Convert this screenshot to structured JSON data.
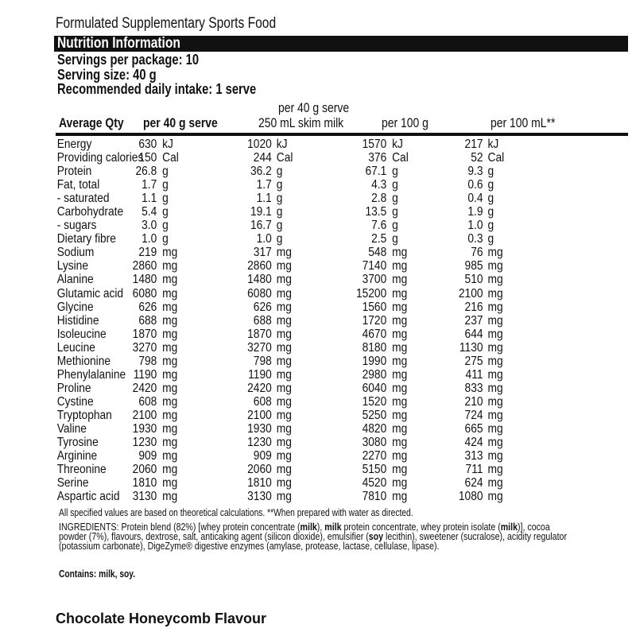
{
  "title": "Formulated Supplementary Sports Food",
  "section": "Nutrition Information",
  "servings": "Servings per package: 10",
  "serving_size": "Serving size: 40 g",
  "daily_intake": "Recommended daily intake: 1 serve",
  "headers": {
    "avg": "Average Qty",
    "col1": "per 40 g serve",
    "col2_line1": "per 40 g serve",
    "col2_line2": "250 mL skim milk",
    "col3": "per 100 g",
    "col4": "per 100 mL**"
  },
  "rows": [
    {
      "name": "Energy",
      "v": [
        "630",
        "1020",
        "1570",
        "217"
      ],
      "unit": "kJ"
    },
    {
      "name": "Providing calories",
      "v": [
        "150",
        "244",
        "376",
        "52"
      ],
      "unit": "Cal"
    },
    {
      "name": "Protein",
      "v": [
        "26.8",
        "36.2",
        "67.1",
        "9.3"
      ],
      "unit": "g"
    },
    {
      "name": "Fat, total",
      "v": [
        "1.7",
        "1.7",
        "4.3",
        "0.6"
      ],
      "unit": "g"
    },
    {
      "name": "- saturated",
      "v": [
        "1.1",
        "1.1",
        "2.8",
        "0.4"
      ],
      "unit": "g"
    },
    {
      "name": "Carbohydrate",
      "v": [
        "5.4",
        "19.1",
        "13.5",
        "1.9"
      ],
      "unit": "g"
    },
    {
      "name": "- sugars",
      "v": [
        "3.0",
        "16.7",
        "7.6",
        "1.0"
      ],
      "unit": "g"
    },
    {
      "name": "Dietary fibre",
      "v": [
        "1.0",
        "1.0",
        "2.5",
        "0.3"
      ],
      "unit": "g"
    },
    {
      "name": "Sodium",
      "v": [
        "219",
        "317",
        "548",
        "76"
      ],
      "unit": "mg"
    },
    {
      "name": "Lysine",
      "v": [
        "2860",
        "2860",
        "7140",
        "985"
      ],
      "unit": "mg"
    },
    {
      "name": "Alanine",
      "v": [
        "1480",
        "1480",
        "3700",
        "510"
      ],
      "unit": "mg"
    },
    {
      "name": "Glutamic acid",
      "v": [
        "6080",
        "6080",
        "15200",
        "2100"
      ],
      "unit": "mg"
    },
    {
      "name": "Glycine",
      "v": [
        "626",
        "626",
        "1560",
        "216"
      ],
      "unit": "mg"
    },
    {
      "name": "Histidine",
      "v": [
        "688",
        "688",
        "1720",
        "237"
      ],
      "unit": "mg"
    },
    {
      "name": "Isoleucine",
      "v": [
        "1870",
        "1870",
        "4670",
        "644"
      ],
      "unit": "mg"
    },
    {
      "name": "Leucine",
      "v": [
        "3270",
        "3270",
        "8180",
        "1130"
      ],
      "unit": "mg"
    },
    {
      "name": "Methionine",
      "v": [
        "798",
        "798",
        "1990",
        "275"
      ],
      "unit": "mg"
    },
    {
      "name": "Phenylalanine",
      "v": [
        "1190",
        "1190",
        "2980",
        "411"
      ],
      "unit": "mg"
    },
    {
      "name": "Proline",
      "v": [
        "2420",
        "2420",
        "6040",
        "833"
      ],
      "unit": "mg"
    },
    {
      "name": "Cystine",
      "v": [
        "608",
        "608",
        "1520",
        "210"
      ],
      "unit": "mg"
    },
    {
      "name": "Tryptophan",
      "v": [
        "2100",
        "2100",
        "5250",
        "724"
      ],
      "unit": "mg"
    },
    {
      "name": "Valine",
      "v": [
        "1930",
        "1930",
        "4820",
        "665"
      ],
      "unit": "mg"
    },
    {
      "name": "Tyrosine",
      "v": [
        "1230",
        "1230",
        "3080",
        "424"
      ],
      "unit": "mg"
    },
    {
      "name": "Arginine",
      "v": [
        "909",
        "909",
        "2270",
        "313"
      ],
      "unit": "mg"
    },
    {
      "name": "Threonine",
      "v": [
        "2060",
        "2060",
        "5150",
        "711"
      ],
      "unit": "mg"
    },
    {
      "name": "Serine",
      "v": [
        "1810",
        "1810",
        "4520",
        "624"
      ],
      "unit": "mg"
    },
    {
      "name": "Aspartic acid",
      "v": [
        "3130",
        "3130",
        "7810",
        "1080"
      ],
      "unit": "mg"
    }
  ],
  "note": "All specified values are based on theoretical calculations. **When prepared with water as directed.",
  "ingredients": [
    {
      "t": "INGREDIENTS: Protein blend (82%) [whey protein concentrate (",
      "b": false
    },
    {
      "t": "milk",
      "b": true
    },
    {
      "t": "), ",
      "b": false
    },
    {
      "t": "milk",
      "b": true
    },
    {
      "t": " protein concentrate, whey protein isolate (",
      "b": false
    },
    {
      "t": "milk",
      "b": true
    },
    {
      "t": ")], cocoa powder (7%), flavours, dextrose, salt, anticaking agent (silicon dioxide), emulsifier (",
      "b": false
    },
    {
      "t": "soy",
      "b": true
    },
    {
      "t": " lecithin), sweetener (sucralose), acidity regulator (potassium carbonate), DigeZyme® digestive enzymes (amylase, protease, lactase, cellulase, lipase).",
      "b": false
    }
  ],
  "contains": "Contains: milk, soy.",
  "flavour": "Chocolate Honeycomb Flavour"
}
